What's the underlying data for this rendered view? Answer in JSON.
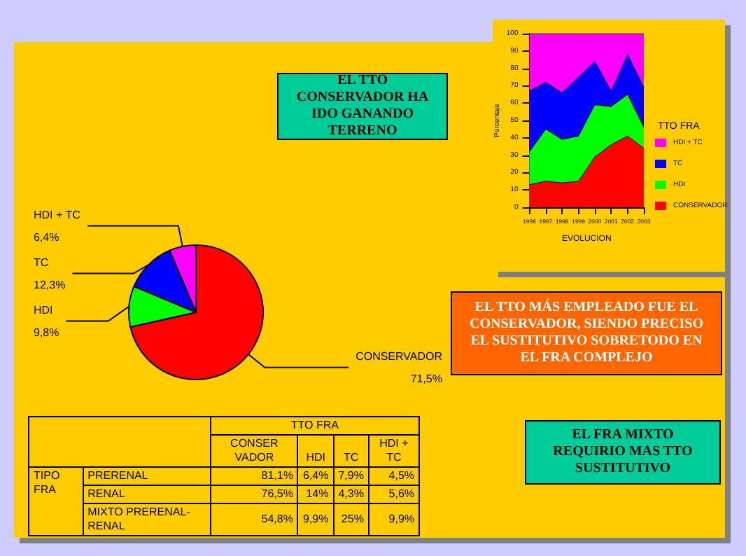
{
  "chart_data": [
    {
      "type": "pie",
      "categories": [
        "CONSERVADOR",
        "HDI",
        "TC",
        "HDI + TC"
      ],
      "values": [
        71.5,
        9.8,
        12.3,
        6.4
      ],
      "colors": [
        "#ff0000",
        "#00ff00",
        "#0000ff",
        "#ff00ff"
      ],
      "value_labels": [
        "71,5%",
        "9,8%",
        "12,3%",
        "6,4%"
      ]
    },
    {
      "type": "area",
      "stacked": true,
      "x": [
        1996,
        1997,
        1998,
        1999,
        2000,
        2001,
        2002,
        2003
      ],
      "xlim": [
        1996,
        2003
      ],
      "xticks": [
        1996,
        1997,
        1998,
        1999,
        2000,
        2001,
        2002,
        2003
      ],
      "ylim": [
        0,
        100
      ],
      "yticks": [
        0,
        10,
        20,
        30,
        40,
        50,
        60,
        70,
        80,
        90,
        100
      ],
      "ylabel": "Porcentaje",
      "xlabel": "EVOLUCION",
      "legend_title": "TTO FRA",
      "legend": "right",
      "series": [
        {
          "name": "CONSERVADOR",
          "color": "#ff0000",
          "values": [
            13,
            15,
            14,
            15,
            29,
            36,
            41,
            34
          ]
        },
        {
          "name": "HDI",
          "color": "#00ff00",
          "values": [
            19,
            30,
            25,
            26,
            30,
            22,
            24,
            12
          ]
        },
        {
          "name": "TC",
          "color": "#0000ff",
          "values": [
            35,
            27,
            27,
            34,
            25,
            9,
            23,
            23
          ]
        },
        {
          "name": "HDI + TC",
          "color": "#ff00ff",
          "values": [
            33,
            28,
            34,
            25,
            16,
            33,
            12,
            31
          ]
        }
      ]
    },
    {
      "type": "other",
      "title": "TTO FRA",
      "ylabel": "TIPO FRA",
      "categories": [
        "PRERENAL",
        "RENAL",
        "MIXTO PRERENAL-RENAL"
      ],
      "series": [
        {
          "name": "CONSER VADOR",
          "values": [
            81.1,
            76.5,
            54.8
          ],
          "value_labels": [
            "81,1%",
            "76,5%",
            "54,8%"
          ]
        },
        {
          "name": "HDI",
          "values": [
            6.4,
            14,
            9.9
          ],
          "value_labels": [
            "6,4%",
            "14%",
            "9,9%"
          ]
        },
        {
          "name": "TC",
          "values": [
            7.9,
            4.3,
            25
          ],
          "value_labels": [
            "7,9%",
            "4,3%",
            "25%"
          ]
        },
        {
          "name": "HDI + TC",
          "values": [
            4.5,
            5.6,
            9.9
          ],
          "value_labels": [
            "4,5%",
            "5,6%",
            "9,9%"
          ]
        }
      ],
      "annotations": [
        "EL TTO CONSERVADOR HA IDO GANANDO TERRENO",
        "EL TTO MÁS EMPLEADO FUE EL CONSERVADOR, SIENDO PRECISO EL SUSTITUTIVO SOBRETODO EN EL FRA COMPLEJO",
        "EL FRA MIXTO REQUIRIO MAS TTO SUSTITUTIVO"
      ]
    }
  ]
}
